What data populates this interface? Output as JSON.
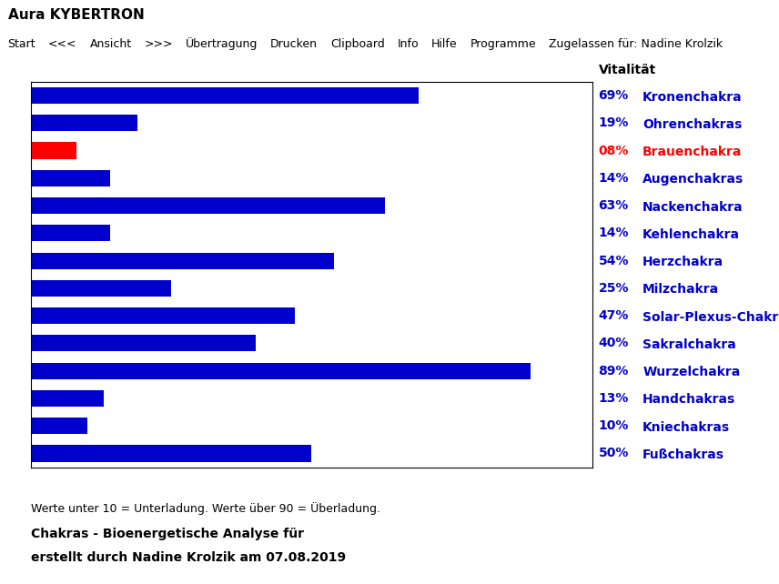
{
  "chart_data": {
    "type": "bar",
    "orientation": "horizontal",
    "title": "Aura KYBERTRON",
    "menu_items": [
      "Start",
      "<<<",
      "Ansicht",
      ">>>",
      "Übertragung",
      "Drucken",
      "Clipboard",
      "Info",
      "Hilfe",
      "Programme",
      "Zugelassen für: Nadine Krolzik"
    ],
    "value_header": "Vitalität",
    "categories": [
      "Kronenchakra",
      "Ohrenchakras",
      "Brauenchakra",
      "Augenchakras",
      "Nackenchakra",
      "Kehlenchakra",
      "Herzchakra",
      "Milzchakra",
      "Solar-Plexus-Chakra",
      "Sakralchakra",
      "Wurzelchakra",
      "Handchakras",
      "Kniechakras",
      "Fußchakras"
    ],
    "values": [
      69,
      19,
      8,
      14,
      63,
      14,
      54,
      25,
      47,
      40,
      89,
      13,
      10,
      50
    ],
    "value_labels": [
      "69%",
      "19%",
      "08%",
      "14%",
      "63%",
      "14%",
      "54%",
      "25%",
      "47%",
      "40%",
      "89%",
      "13%",
      "10%",
      "50%"
    ],
    "colors": [
      "#0000cc",
      "#0000cc",
      "#ff0000",
      "#0000cc",
      "#0000cc",
      "#0000cc",
      "#0000cc",
      "#0000cc",
      "#0000cc",
      "#0000cc",
      "#0000cc",
      "#0000cc",
      "#0000cc",
      "#0000cc"
    ],
    "xlim": [
      0,
      100
    ],
    "tick_labels": "y",
    "grid": false,
    "data_labels": true,
    "annotations": [
      "Werte unter 10 = Unterladung. Werte über 90 = Überladung.",
      "Chakras - Bioenergetische Analyse für",
      "erstellt durch Nadine Krolzik am 07.08.2019"
    ]
  }
}
